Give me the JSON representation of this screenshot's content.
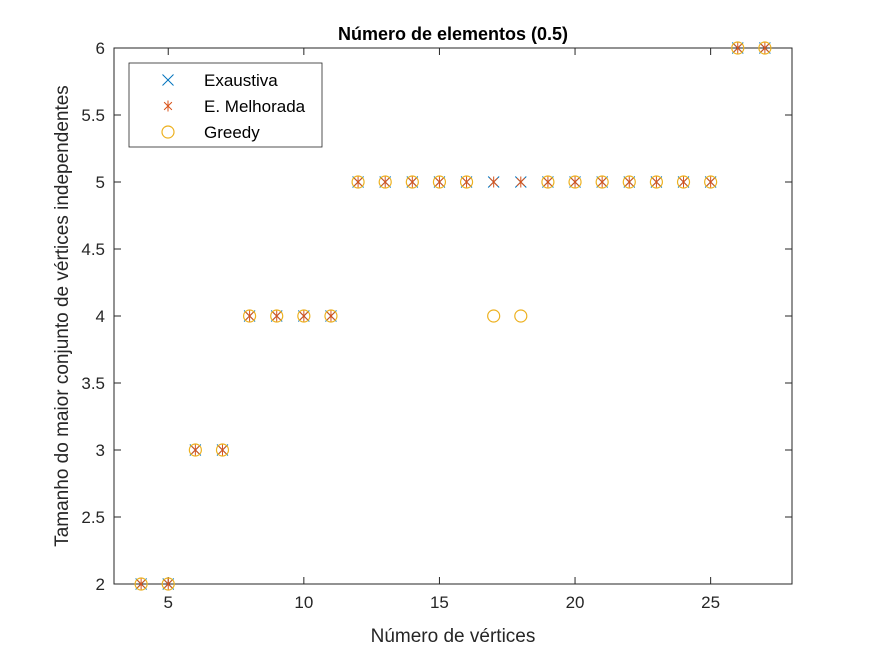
{
  "chart_data": {
    "type": "scatter",
    "title": "Número de elementos (0.5)",
    "xlabel": "Número de vértices",
    "ylabel": "Tamanho do maior conjunto de vértices independentes",
    "xlim": [
      3,
      28
    ],
    "ylim": [
      2,
      6
    ],
    "xticks": [
      5,
      10,
      15,
      20,
      25
    ],
    "yticks": [
      2,
      2.5,
      3,
      3.5,
      4,
      4.5,
      5,
      5.5,
      6
    ],
    "xtick_labels": [
      "5",
      "10",
      "15",
      "20",
      "25"
    ],
    "ytick_labels": [
      "2",
      "2.5",
      "3",
      "3.5",
      "4",
      "4.5",
      "5",
      "5.5",
      "6"
    ],
    "grid": false,
    "legend_position": "top-left",
    "x": [
      4,
      5,
      6,
      7,
      8,
      9,
      10,
      11,
      12,
      13,
      14,
      15,
      16,
      17,
      18,
      19,
      20,
      21,
      22,
      23,
      24,
      25,
      26,
      27
    ],
    "series": [
      {
        "name": "Exaustiva",
        "marker": "x",
        "color": "#0072BD",
        "values": [
          2,
          2,
          3,
          3,
          4,
          4,
          4,
          4,
          5,
          5,
          5,
          5,
          5,
          5,
          5,
          5,
          5,
          5,
          5,
          5,
          5,
          5,
          6,
          6
        ]
      },
      {
        "name": "E. Melhorada",
        "marker": "asterisk",
        "color": "#D95319",
        "values": [
          2,
          2,
          3,
          3,
          4,
          4,
          4,
          4,
          5,
          5,
          5,
          5,
          5,
          5,
          5,
          5,
          5,
          5,
          5,
          5,
          5,
          5,
          6,
          6
        ]
      },
      {
        "name": "Greedy",
        "marker": "circle",
        "color": "#EDB120",
        "values": [
          2,
          2,
          3,
          3,
          4,
          4,
          4,
          4,
          5,
          5,
          5,
          5,
          5,
          4,
          4,
          5,
          5,
          5,
          5,
          5,
          5,
          5,
          6,
          6
        ]
      }
    ]
  }
}
